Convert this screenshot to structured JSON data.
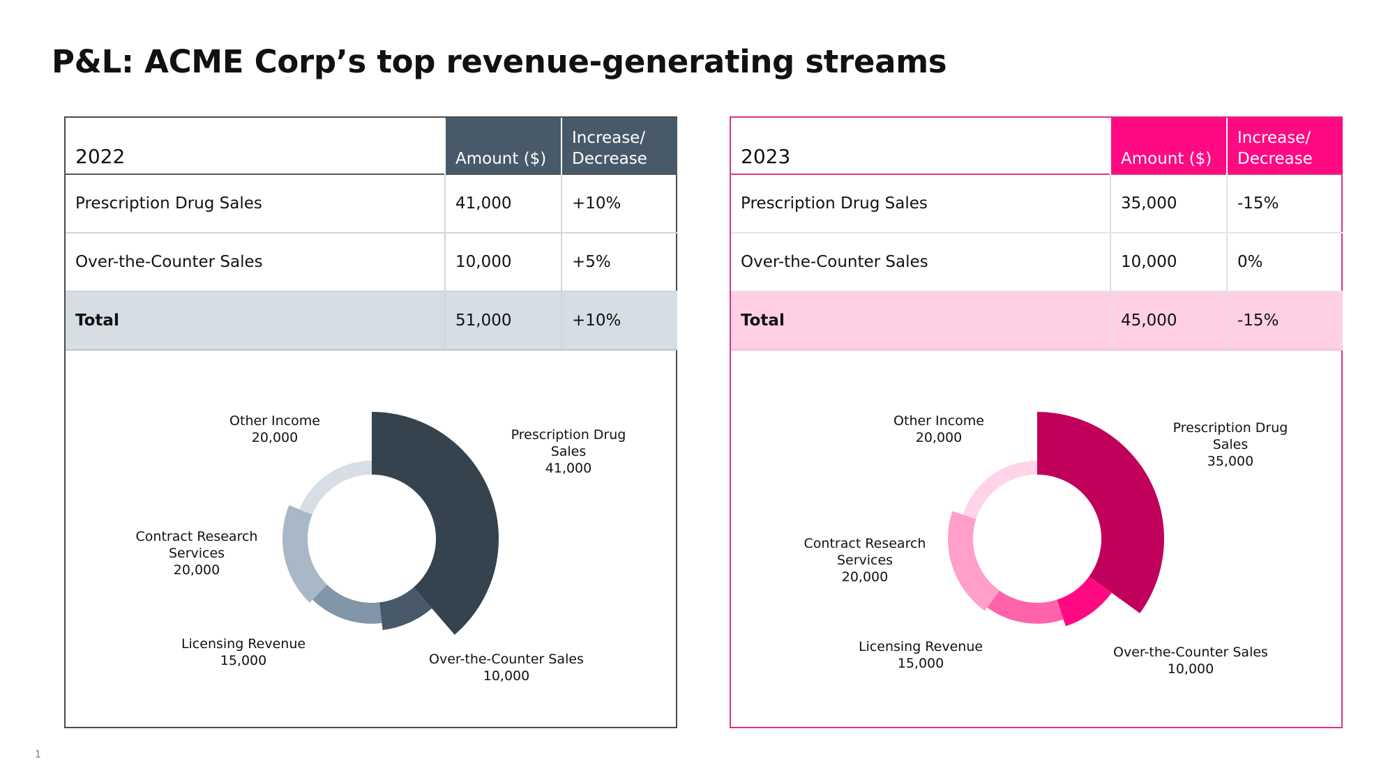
{
  "title": "P&L: ACME Corp’s top revenue-generating streams",
  "page_number": "1",
  "colors": {
    "y2022_header": "#485a6a",
    "y2022_total_row": "#d6dde3",
    "y2023_header": "#ff0a82",
    "y2023_total_row": "#ffcfe6"
  },
  "tables": {
    "y2022": {
      "year": "2022",
      "col_amount": "Amount ($)",
      "col_change_1": "Increase/",
      "col_change_2": "Decrease",
      "rows": [
        {
          "label": "Prescription Drug Sales",
          "amount": "41,000",
          "change": "+10%"
        },
        {
          "label": "Over-the-Counter Sales",
          "amount": "10,000",
          "change": "+5%"
        },
        {
          "label": "Total",
          "amount": "51,000",
          "change": "+10%"
        }
      ]
    },
    "y2023": {
      "year": "2023",
      "col_amount": "Amount ($)",
      "col_change_1": "Increase/",
      "col_change_2": "Decrease",
      "rows": [
        {
          "label": "Prescription Drug Sales",
          "amount": "35,000",
          "change": "-15%"
        },
        {
          "label": "Over-the-Counter Sales",
          "amount": "10,000",
          "change": "0%"
        },
        {
          "label": "Total",
          "amount": "45,000",
          "change": "-15%"
        }
      ]
    }
  },
  "chart_data": [
    {
      "type": "pie",
      "style": "variable-radius donut",
      "categories": [
        "Prescription Drug Sales",
        "Over-the-Counter Sales",
        "Licensing Revenue",
        "Contract Research Services",
        "Other Income"
      ],
      "values": [
        41000,
        10000,
        15000,
        20000,
        20000
      ],
      "labels": [
        {
          "lines": [
            "Prescription Drug",
            "Sales",
            "41,000"
          ]
        },
        {
          "lines": [
            "Over-the-Counter Sales",
            "10,000"
          ]
        },
        {
          "lines": [
            "Licensing Revenue",
            "15,000"
          ]
        },
        {
          "lines": [
            "Contract Research",
            "Services",
            "20,000"
          ]
        },
        {
          "lines": [
            "Other Income",
            "20,000"
          ]
        }
      ],
      "colors": [
        "#35434f",
        "#485a6a",
        "#8196a8",
        "#a9b8c6",
        "#d7dee5"
      ]
    },
    {
      "type": "pie",
      "style": "variable-radius donut",
      "categories": [
        "Prescription Drug Sales",
        "Over-the-Counter Sales",
        "Licensing Revenue",
        "Contract Research Services",
        "Other Income"
      ],
      "values": [
        35000,
        10000,
        15000,
        20000,
        20000
      ],
      "labels": [
        {
          "lines": [
            "Prescription Drug",
            "Sales",
            "35,000"
          ]
        },
        {
          "lines": [
            "Over-the-Counter Sales",
            "10,000"
          ]
        },
        {
          "lines": [
            "Licensing Revenue",
            "15,000"
          ]
        },
        {
          "lines": [
            "Contract Research",
            "Services",
            "20,000"
          ]
        },
        {
          "lines": [
            "Other Income",
            "20,000"
          ]
        }
      ],
      "colors": [
        "#c0005a",
        "#ff0a82",
        "#ff63aa",
        "#ff9fca",
        "#ffd3e8"
      ]
    }
  ]
}
